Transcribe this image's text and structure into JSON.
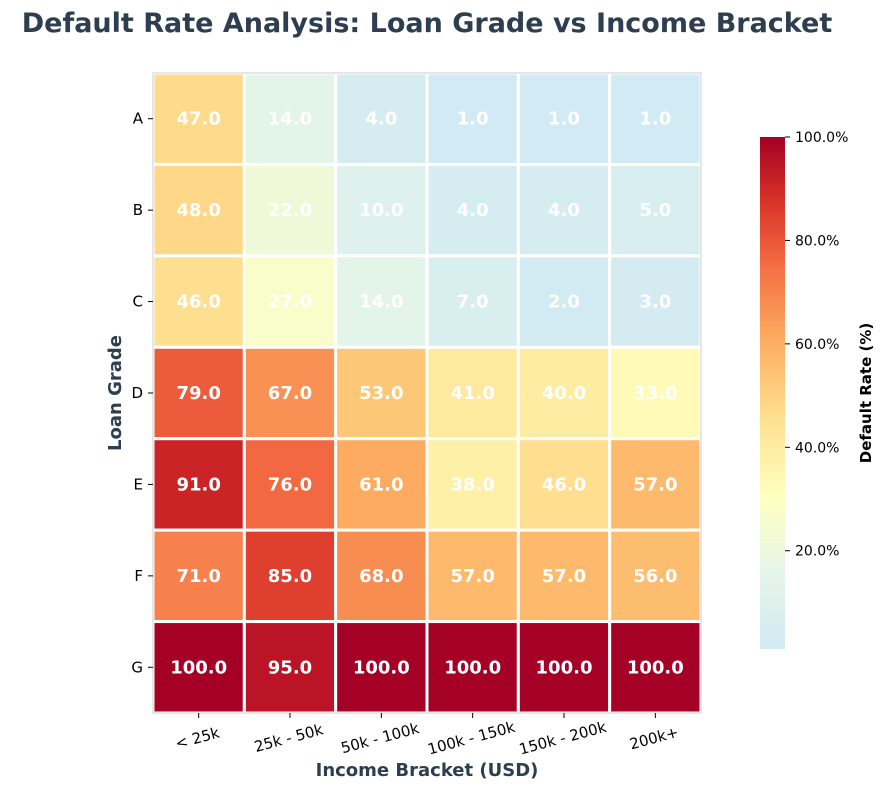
{
  "chart_data": {
    "type": "heatmap",
    "title": "Default Rate Analysis: Loan Grade vs Income Bracket",
    "xlabel": "Income Bracket (USD)",
    "ylabel": "Loan Grade",
    "x_categories": [
      "< 25k",
      "25k - 50k",
      "50k - 100k",
      "100k - 150k",
      "150k - 200k",
      "200k+"
    ],
    "y_categories": [
      "A",
      "B",
      "C",
      "D",
      "E",
      "F",
      "G"
    ],
    "values": [
      [
        47,
        14,
        4,
        1,
        1,
        1
      ],
      [
        48,
        22,
        10,
        4,
        4,
        5
      ],
      [
        46,
        27,
        14,
        7,
        2,
        3
      ],
      [
        79,
        67,
        53,
        41,
        40,
        33
      ],
      [
        91,
        76,
        61,
        38,
        46,
        57
      ],
      [
        71,
        85,
        68,
        57,
        57,
        56
      ],
      [
        100,
        95,
        100,
        100,
        100,
        100
      ]
    ],
    "value_format": "0.0",
    "colormap": "RdYlBu_r (upper half)",
    "colorbar": {
      "label": "Default Rate (%)",
      "range": [
        1,
        100
      ],
      "ticks": [
        20,
        40,
        60,
        80,
        100
      ],
      "tick_labels": [
        "20.0%",
        "40.0%",
        "60.0%",
        "80.0%",
        "100.0%"
      ]
    },
    "colors": {
      "title": "#2c3e50",
      "axis_label": "#2c3e50",
      "cell_text": "#ffffff",
      "cell_border": "#ffffff",
      "frame": "#cccccc"
    }
  }
}
